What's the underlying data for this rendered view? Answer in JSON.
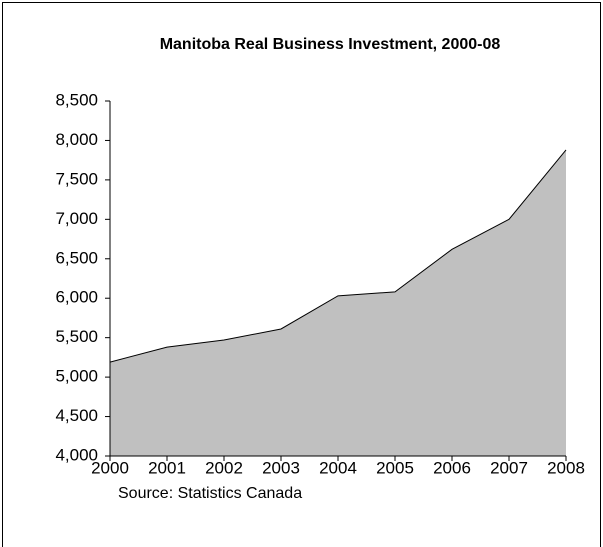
{
  "chart_data": {
    "type": "area",
    "title": "Manitoba Real Business Investment, 2000-08",
    "source": "Source: Statistics Canada",
    "categories": [
      "2000",
      "2001",
      "2002",
      "2003",
      "2004",
      "2005",
      "2006",
      "2007",
      "2008"
    ],
    "values": [
      5190,
      5380,
      5470,
      5610,
      6030,
      6080,
      6620,
      7000,
      7880
    ],
    "color": "#c0c0c0",
    "ylim": [
      4000,
      8500
    ],
    "yticks": [
      {
        "value": 4000,
        "label": "4,000"
      },
      {
        "value": 4500,
        "label": "4,500"
      },
      {
        "value": 5000,
        "label": "5,000"
      },
      {
        "value": 5500,
        "label": "5,500"
      },
      {
        "value": 6000,
        "label": "6,000"
      },
      {
        "value": 6500,
        "label": "6,500"
      },
      {
        "value": 7000,
        "label": "7,000"
      },
      {
        "value": 7500,
        "label": "7,500"
      },
      {
        "value": 8000,
        "label": "8,000"
      },
      {
        "value": 8500,
        "label": "8,500"
      }
    ],
    "grid": false
  }
}
